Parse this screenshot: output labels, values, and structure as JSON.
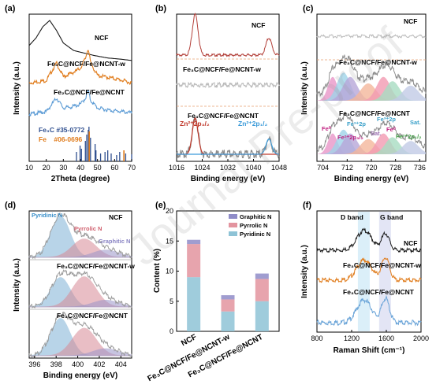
{
  "chart_data": [
    {
      "panel": "(a)",
      "type": "line",
      "xlabel": "2Theta (degree)",
      "ylabel": "Intensity (a.u.)",
      "xlim": [
        10,
        70
      ],
      "xticks": [
        10,
        20,
        30,
        40,
        50,
        60,
        70
      ],
      "series": [
        {
          "name": "NCF",
          "color": "#1a1a1a",
          "x": [
            10,
            14,
            18,
            22,
            26,
            30,
            36,
            42,
            48,
            56,
            64,
            70
          ],
          "y": [
            0.8,
            0.86,
            0.95,
            1.0,
            0.92,
            0.82,
            0.76,
            0.74,
            0.72,
            0.7,
            0.69,
            0.68
          ]
        },
        {
          "name": "Fe₃C@NCF/Fe@NCNT-w",
          "color": "#e07b1a",
          "x": [
            10,
            20,
            26,
            30,
            35,
            38,
            40,
            43,
            44.5,
            46,
            50,
            58,
            65,
            70
          ],
          "y": [
            0.5,
            0.52,
            0.66,
            0.55,
            0.58,
            0.6,
            0.62,
            0.7,
            0.78,
            0.66,
            0.56,
            0.54,
            0.52,
            0.5
          ]
        },
        {
          "name": "Fe₂C@NCF/Fe@NCNT",
          "color": "#5b9bd5",
          "x": [
            10,
            20,
            26,
            30,
            35,
            40,
            43,
            44.5,
            46,
            50,
            58,
            65,
            70
          ],
          "y": [
            0.25,
            0.27,
            0.38,
            0.3,
            0.31,
            0.33,
            0.38,
            0.44,
            0.36,
            0.3,
            0.28,
            0.27,
            0.26
          ]
        }
      ],
      "reference_labels": [
        "Fe₃C #35-0772",
        "Fe #06-0696"
      ],
      "reference_colors": [
        "#2f4f8f",
        "#e07b1a"
      ]
    },
    {
      "panel": "(b)",
      "type": "line",
      "xlabel": "Binding energy (eV)",
      "ylabel": "Intensity (a.u.)",
      "xlim": [
        1016,
        1048
      ],
      "xticks": [
        1016,
        1024,
        1032,
        1040,
        1048
      ],
      "reversed": true,
      "series": [
        {
          "name": "NCF",
          "color": "#b3403a",
          "peaks_eV": [
            1021.8,
            1044.8
          ]
        },
        {
          "name": "Fe₃C@NCF/Fe@NCNT-w",
          "color": "#bbbbbb",
          "peaks_eV": []
        },
        {
          "name": "Fe₃C@NCF/Fe@NCNT",
          "color": "#888888",
          "peaks_eV": [
            1021.8,
            1044.8
          ]
        }
      ],
      "annotations": [
        "Zn²⁺2p₃/₂",
        "Zn²⁺2p₁/₂"
      ]
    },
    {
      "panel": "(c)",
      "type": "line",
      "xlabel": "Binding energy (eV)",
      "ylabel": "Intensity (a.u.)",
      "xlim": [
        702,
        738
      ],
      "xticks": [
        704,
        712,
        720,
        728,
        736
      ],
      "reversed": true,
      "series": [
        {
          "name": "NCF",
          "color": "#bbbbbb"
        },
        {
          "name": "Fe₃C@NCF/Fe@NCNT-w",
          "color": "#999999"
        },
        {
          "name": "Fe₃C@NCF/Fe@NCNT",
          "color": "#999999"
        }
      ],
      "annotations": [
        "Fe⁰",
        "Fe³⁺2p",
        "Fe²⁺2p₃/₂",
        "Sat.",
        "Fe⁰",
        "Fe³⁺2p",
        "Fe²⁺2p₁/₂",
        "Sat."
      ]
    },
    {
      "panel": "(d)",
      "type": "line",
      "xlabel": "Binding energy (eV)",
      "ylabel": "Intensity (a.u.)",
      "xlim": [
        395.5,
        405
      ],
      "xticks": [
        396,
        398,
        400,
        402,
        404
      ],
      "series": [
        {
          "name": "NCF"
        },
        {
          "name": "Fe₃C@NCF/Fe@NCNT-w"
        },
        {
          "name": "Fe₃C@NCF/Fe@NCNT"
        }
      ],
      "components": [
        {
          "name": "Pyridinic N",
          "center_eV": 398.4,
          "color": "#7fb2d6"
        },
        {
          "name": "Pyrrolic N",
          "center_eV": 400.6,
          "color": "#d88a96"
        },
        {
          "name": "Graphitic N",
          "center_eV": 402.6,
          "color": "#9b95c9"
        }
      ]
    },
    {
      "panel": "(e)",
      "type": "bar",
      "ylabel": "Content (%)",
      "ylim": [
        0,
        20
      ],
      "yticks": [
        0,
        5,
        10,
        15,
        20
      ],
      "categories": [
        "NCF",
        "Fe₃C@NCF/Fe@NCNT-w",
        "Fe₃C@NCF/Fe@NCNT"
      ],
      "series": [
        {
          "name": "Pyridinic N",
          "color": "#8ec3d6",
          "values": [
            9.0,
            3.3,
            5.0
          ]
        },
        {
          "name": "Pyrrolic N",
          "color": "#e3949f",
          "values": [
            5.5,
            2.0,
            3.7
          ]
        },
        {
          "name": "Graphitic N",
          "color": "#8f8cc8",
          "values": [
            0.7,
            0.7,
            0.9
          ]
        }
      ],
      "legend": "top-right"
    },
    {
      "panel": "(f)",
      "type": "line",
      "xlabel": "Raman Shift (cm⁻¹)",
      "ylabel": "Intensity (a.u.)",
      "xlim": [
        800,
        2000
      ],
      "xticks": [
        800,
        1200,
        1600,
        2000
      ],
      "bands": [
        {
          "name": "D band",
          "center": 1340
        },
        {
          "name": "G band",
          "center": 1585
        }
      ],
      "series": [
        {
          "name": "NCF",
          "color": "#1a1a1a"
        },
        {
          "name": "Fe₃C@NCF/Fe@NCNT-w",
          "color": "#e07b1a"
        },
        {
          "name": "Fe₃C@NCF/Fe@NCNT",
          "color": "#6aa4d8"
        }
      ]
    }
  ],
  "text": {
    "a": {
      "tag": "(a)",
      "s1": "NCF",
      "s2": "Fe₃C@NCF/Fe@NCNT-w",
      "s3": "Fe₂C@NCF/Fe@NCNT",
      "r1": "Fe₃C #35-0772",
      "r2": "Fe    #06-0696",
      "xlabel": "2Theta (degree)",
      "ylabel": "Intensity (a.u.)",
      "ticks": [
        "10",
        "20",
        "30",
        "40",
        "50",
        "60",
        "70"
      ]
    },
    "b": {
      "tag": "(b)",
      "s1": "NCF",
      "s2": "Fe₃C@NCF/Fe@NCNT-w",
      "s3": "Fe₃C@NCF/Fe@NCNT",
      "ann1": "Zn²⁺2p₃/₂",
      "ann2": "Zn²⁺2p₁/₂",
      "xlabel": "Binding energy (eV)",
      "ylabel": "Intensity (a.u.)",
      "ticks": [
        "1016",
        "1024",
        "1032",
        "1040",
        "1048"
      ]
    },
    "c": {
      "tag": "(c)",
      "s1": "NCF",
      "s2": "Fe₃C@NCF/Fe@NCNT-w",
      "s3": "Fe₃C@NCF/Fe@NCNT",
      "fe0a": "Fe⁰",
      "fe3a": "Fe³⁺2p",
      "fe2a": "Fe²⁺2p₃/₂",
      "sat1": "Sat.",
      "fe0b": "Fe⁰",
      "fe3b": "Fe³⁺2p",
      "fe2b": "Fe²⁺2p₁/₂",
      "sat2": "Sat.",
      "xlabel": "Binding energy (eV)",
      "ylabel": "Intensity (a.u.)",
      "ticks": [
        "704",
        "712",
        "720",
        "728",
        "736"
      ]
    },
    "d": {
      "tag": "(d)",
      "s1": "NCF",
      "s2": "Fe₃C@NCF/Fe@NCNT-w",
      "s3": "Fe₃C@NCF/Fe@NCNT",
      "c1": "Pyridinic N",
      "c2": "Pyrrolic N",
      "c3": "Graphitic N",
      "xlabel": "Binding energy (eV)",
      "ylabel": "Intensity (a.u.)",
      "ticks": [
        "396",
        "398",
        "400",
        "402",
        "404"
      ]
    },
    "e": {
      "tag": "(e)",
      "ylabel": "Content (%)",
      "ticks": [
        "0",
        "5",
        "10",
        "15",
        "20"
      ],
      "l1": "Graphitic N",
      "l2": "Pyrrolic N",
      "l3": "Pyridinic N",
      "c1": "NCF",
      "c2": "Fe₃C@NCF/Fe@NCNT-w",
      "c3": "Fe₃C@NCF/Fe@NCNT"
    },
    "f": {
      "tag": "(f)",
      "s1": "NCF",
      "s2": "Fe₃C@NCF/Fe@NCNT-w",
      "s3": "Fe₃C@NCF/Fe@NCNT",
      "d": "D band",
      "g": "G band",
      "xlabel": "Raman Shift (cm⁻¹)",
      "ylabel": "Intensity (a.u.)",
      "ticks": [
        "800",
        "1200",
        "1600",
        "2000"
      ]
    },
    "watermark": "Journal Pre-proof"
  }
}
